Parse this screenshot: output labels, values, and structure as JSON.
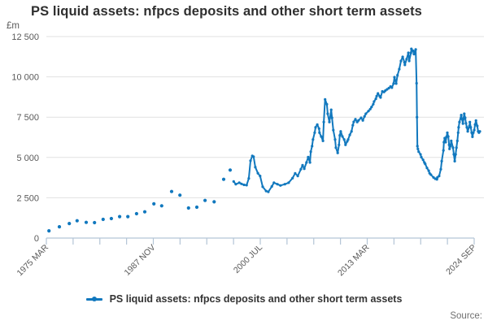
{
  "title": "PS liquid assets: nfpcs deposits and other short term assets",
  "y_axis_unit": "£m",
  "legend": {
    "label": "PS liquid assets: nfpcs deposits and other short term assets"
  },
  "source_label": "Source:",
  "colors": {
    "line": "#1178be",
    "grid": "#e1e1e1",
    "axis": "#b4c5d6",
    "title_text": "#2f2f2f",
    "tick_text": "#595959",
    "source_text": "#6f6f6f"
  },
  "chart_data": {
    "type": "line",
    "title": "PS liquid assets: nfpcs deposits and other short term assets",
    "unit": "£m",
    "xlabel": "",
    "ylabel": "£m",
    "ylim": [
      0,
      12500
    ],
    "grid": "horizontal",
    "legend_position": "bottom",
    "y_tick_values": [
      0,
      2500,
      5000,
      7500,
      10000,
      12500
    ],
    "y_tick_labels": [
      "0",
      "2 500",
      "5 000",
      "7 500",
      "10 000",
      "12 500"
    ],
    "x_tick_labels": [
      "1975 MAR",
      "1987 NOV",
      "2000 JUL",
      "2013 MAR",
      "2024 SEP"
    ],
    "x_minor_tick_count": 17,
    "x_labeled_tick_step": 4,
    "series": [
      {
        "name": "PS liquid assets: nfpcs deposits and other short term assets",
        "color": "#1178be",
        "marker": "circle",
        "isolated_marker_points": [
          [
            0.006,
            450
          ],
          [
            0.03,
            700
          ],
          [
            0.053,
            900
          ],
          [
            0.071,
            1075
          ],
          [
            0.092,
            975
          ],
          [
            0.111,
            960
          ],
          [
            0.131,
            1160
          ],
          [
            0.15,
            1210
          ],
          [
            0.169,
            1330
          ],
          [
            0.188,
            1330
          ],
          [
            0.208,
            1510
          ],
          [
            0.227,
            1630
          ],
          [
            0.248,
            2120
          ],
          [
            0.266,
            2000
          ],
          [
            0.289,
            2890
          ],
          [
            0.308,
            2660
          ],
          [
            0.328,
            1865
          ],
          [
            0.347,
            1915
          ],
          [
            0.366,
            2335
          ],
          [
            0.387,
            2250
          ],
          [
            0.409,
            3645
          ],
          [
            0.424,
            4220
          ]
        ],
        "line_points": [
          [
            0.432,
            3510
          ],
          [
            0.437,
            3340
          ],
          [
            0.445,
            3430
          ],
          [
            0.45,
            3360
          ],
          [
            0.456,
            3300
          ],
          [
            0.462,
            3280
          ],
          [
            0.467,
            3700
          ],
          [
            0.471,
            4800
          ],
          [
            0.475,
            5100
          ],
          [
            0.478,
            5050
          ],
          [
            0.482,
            4400
          ],
          [
            0.488,
            4020
          ],
          [
            0.493,
            3850
          ],
          [
            0.499,
            3180
          ],
          [
            0.507,
            2920
          ],
          [
            0.512,
            2870
          ],
          [
            0.52,
            3200
          ],
          [
            0.525,
            3430
          ],
          [
            0.533,
            3340
          ],
          [
            0.54,
            3260
          ],
          [
            0.55,
            3340
          ],
          [
            0.559,
            3430
          ],
          [
            0.568,
            3720
          ],
          [
            0.574,
            4015
          ],
          [
            0.58,
            3850
          ],
          [
            0.587,
            4270
          ],
          [
            0.591,
            4520
          ],
          [
            0.595,
            4300
          ],
          [
            0.6,
            4690
          ],
          [
            0.604,
            5020
          ],
          [
            0.608,
            4690
          ],
          [
            0.61,
            5360
          ],
          [
            0.613,
            5700
          ],
          [
            0.615,
            6115
          ],
          [
            0.619,
            6535
          ],
          [
            0.621,
            6870
          ],
          [
            0.625,
            7040
          ],
          [
            0.629,
            6790
          ],
          [
            0.63,
            6535
          ],
          [
            0.634,
            6300
          ],
          [
            0.638,
            6030
          ],
          [
            0.64,
            7200
          ],
          [
            0.643,
            8600
          ],
          [
            0.647,
            8300
          ],
          [
            0.649,
            7710
          ],
          [
            0.653,
            7200
          ],
          [
            0.657,
            7960
          ],
          [
            0.659,
            7460
          ],
          [
            0.662,
            6700
          ],
          [
            0.666,
            6115
          ],
          [
            0.668,
            5610
          ],
          [
            0.672,
            5280
          ],
          [
            0.675,
            5780
          ],
          [
            0.677,
            6370
          ],
          [
            0.679,
            6620
          ],
          [
            0.683,
            6300
          ],
          [
            0.687,
            6115
          ],
          [
            0.69,
            5780
          ],
          [
            0.694,
            6000
          ],
          [
            0.696,
            6115
          ],
          [
            0.7,
            6400
          ],
          [
            0.704,
            6620
          ],
          [
            0.707,
            7000
          ],
          [
            0.709,
            7210
          ],
          [
            0.713,
            7375
          ],
          [
            0.717,
            7200
          ],
          [
            0.72,
            7300
          ],
          [
            0.726,
            7460
          ],
          [
            0.73,
            7300
          ],
          [
            0.734,
            7550
          ],
          [
            0.737,
            7710
          ],
          [
            0.743,
            7880
          ],
          [
            0.747,
            8000
          ],
          [
            0.75,
            8130
          ],
          [
            0.754,
            8300
          ],
          [
            0.756,
            8470
          ],
          [
            0.76,
            8640
          ],
          [
            0.762,
            8800
          ],
          [
            0.765,
            8970
          ],
          [
            0.769,
            8800
          ],
          [
            0.771,
            8720
          ],
          [
            0.775,
            9100
          ],
          [
            0.779,
            9060
          ],
          [
            0.782,
            9150
          ],
          [
            0.786,
            9225
          ],
          [
            0.79,
            9300
          ],
          [
            0.794,
            9400
          ],
          [
            0.797,
            9330
          ],
          [
            0.801,
            9580
          ],
          [
            0.803,
            9980
          ],
          [
            0.807,
            9580
          ],
          [
            0.81,
            10100
          ],
          [
            0.814,
            10480
          ],
          [
            0.818,
            10990
          ],
          [
            0.822,
            11240
          ],
          [
            0.826,
            10900
          ],
          [
            0.827,
            10740
          ],
          [
            0.831,
            11100
          ],
          [
            0.835,
            11490
          ],
          [
            0.837,
            10990
          ],
          [
            0.841,
            11490
          ],
          [
            0.842,
            11740
          ],
          [
            0.846,
            11615
          ],
          [
            0.848,
            11410
          ],
          [
            0.852,
            11700
          ],
          [
            0.854,
            9600
          ],
          [
            0.855,
            7500
          ],
          [
            0.856,
            5700
          ],
          [
            0.857,
            5530
          ],
          [
            0.859,
            5360
          ],
          [
            0.863,
            5190
          ],
          [
            0.865,
            5020
          ],
          [
            0.869,
            4855
          ],
          [
            0.872,
            4690
          ],
          [
            0.874,
            4600
          ],
          [
            0.878,
            4350
          ],
          [
            0.882,
            4180
          ],
          [
            0.884,
            4015
          ],
          [
            0.887,
            3930
          ],
          [
            0.893,
            3760
          ],
          [
            0.897,
            3680
          ],
          [
            0.901,
            3640
          ],
          [
            0.902,
            3760
          ],
          [
            0.906,
            3850
          ],
          [
            0.91,
            4270
          ],
          [
            0.912,
            4770
          ],
          [
            0.916,
            5440
          ],
          [
            0.917,
            5950
          ],
          [
            0.919,
            6200
          ],
          [
            0.921,
            5950
          ],
          [
            0.923,
            6280
          ],
          [
            0.925,
            6535
          ],
          [
            0.927,
            6300
          ],
          [
            0.929,
            5780
          ],
          [
            0.93,
            5530
          ],
          [
            0.932,
            5700
          ],
          [
            0.934,
            6030
          ],
          [
            0.938,
            5610
          ],
          [
            0.94,
            5190
          ],
          [
            0.942,
            4770
          ],
          [
            0.944,
            5190
          ],
          [
            0.946,
            5610
          ],
          [
            0.948,
            6030
          ],
          [
            0.95,
            6535
          ],
          [
            0.951,
            6870
          ],
          [
            0.953,
            7200
          ],
          [
            0.957,
            7630
          ],
          [
            0.959,
            7375
          ],
          [
            0.961,
            7100
          ],
          [
            0.962,
            7375
          ],
          [
            0.964,
            7710
          ],
          [
            0.966,
            7460
          ],
          [
            0.968,
            7120
          ],
          [
            0.97,
            6870
          ],
          [
            0.972,
            6620
          ],
          [
            0.976,
            6955
          ],
          [
            0.977,
            7200
          ],
          [
            0.979,
            6870
          ],
          [
            0.981,
            6535
          ],
          [
            0.983,
            6280
          ],
          [
            0.985,
            6535
          ],
          [
            0.987,
            6700
          ],
          [
            0.989,
            7040
          ],
          [
            0.991,
            7290
          ],
          [
            0.994,
            6955
          ],
          [
            0.996,
            6620
          ],
          [
            0.998,
            6535
          ],
          [
            1.0,
            6620
          ]
        ]
      }
    ]
  }
}
